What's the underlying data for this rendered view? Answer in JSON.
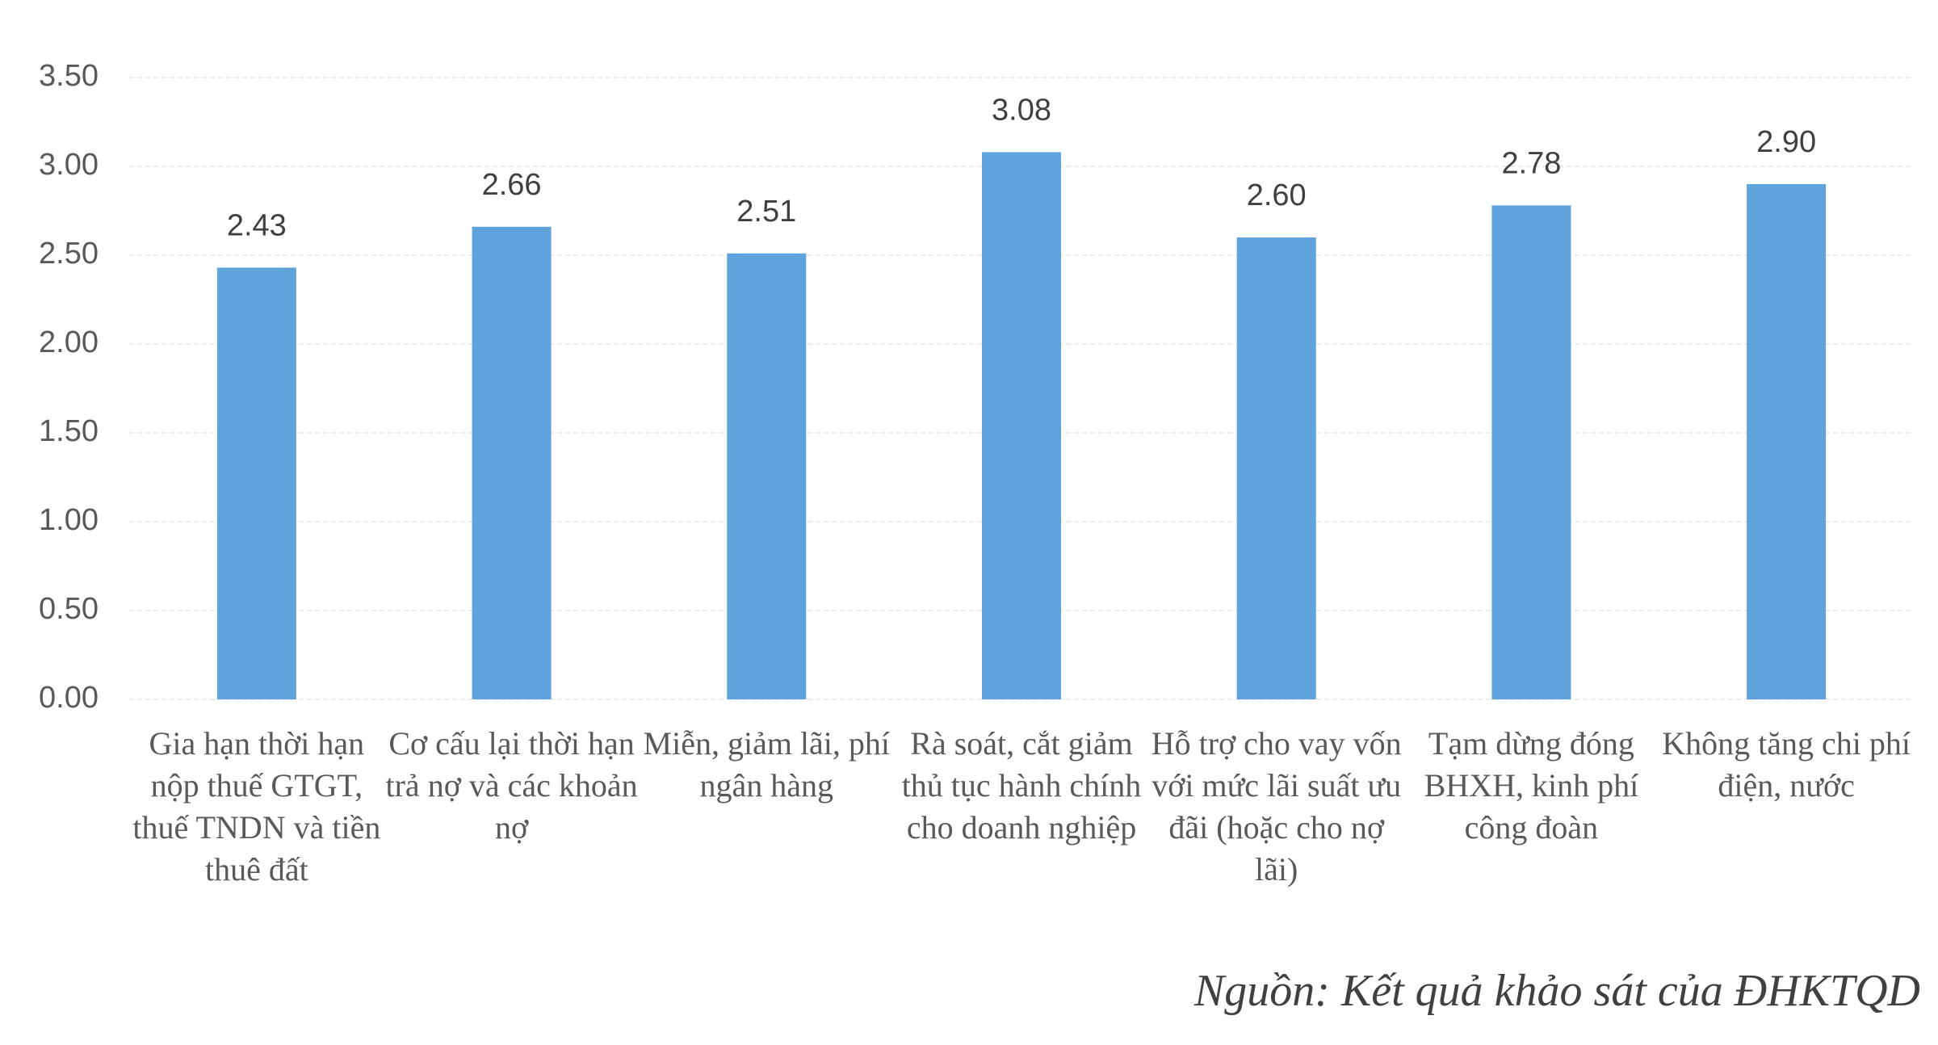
{
  "chart_data": {
    "type": "bar",
    "categories": [
      "Gia hạn thời hạn nộp thuế GTGT, thuế TNDN và tiền thuê đất",
      "Cơ cấu lại thời hạn trả nợ và các khoản nợ",
      "Miễn, giảm lãi, phí ngân hàng",
      "Rà soát, cắt giảm thủ tục hành chính cho doanh nghiệp",
      "Hỗ trợ cho vay vốn với mức lãi suất ưu đãi (hoặc cho nợ lãi)",
      "Tạm dừng đóng BHXH, kinh phí công đoàn",
      "Không tăng chi phí điện, nước"
    ],
    "values": [
      2.43,
      2.66,
      2.51,
      3.08,
      2.6,
      2.78,
      2.9
    ],
    "value_labels": [
      "2.43",
      "2.66",
      "2.51",
      "3.08",
      "2.60",
      "2.78",
      "2.90"
    ],
    "color": "#5fa3dc",
    "ylim": [
      0,
      3.5
    ],
    "yticks": [
      {
        "value": 0,
        "label": "0.00"
      },
      {
        "value": 0.5,
        "label": "0.50"
      },
      {
        "value": 1,
        "label": "1.00"
      },
      {
        "value": 1.5,
        "label": "1.50"
      },
      {
        "value": 2,
        "label": "2.00"
      },
      {
        "value": 2.5,
        "label": "2.50"
      },
      {
        "value": 3,
        "label": "3.00"
      },
      {
        "value": 3.5,
        "label": "3.50"
      }
    ],
    "grid": true,
    "source": "Nguồn: Kết quả khảo sát của ĐHKTQD"
  }
}
